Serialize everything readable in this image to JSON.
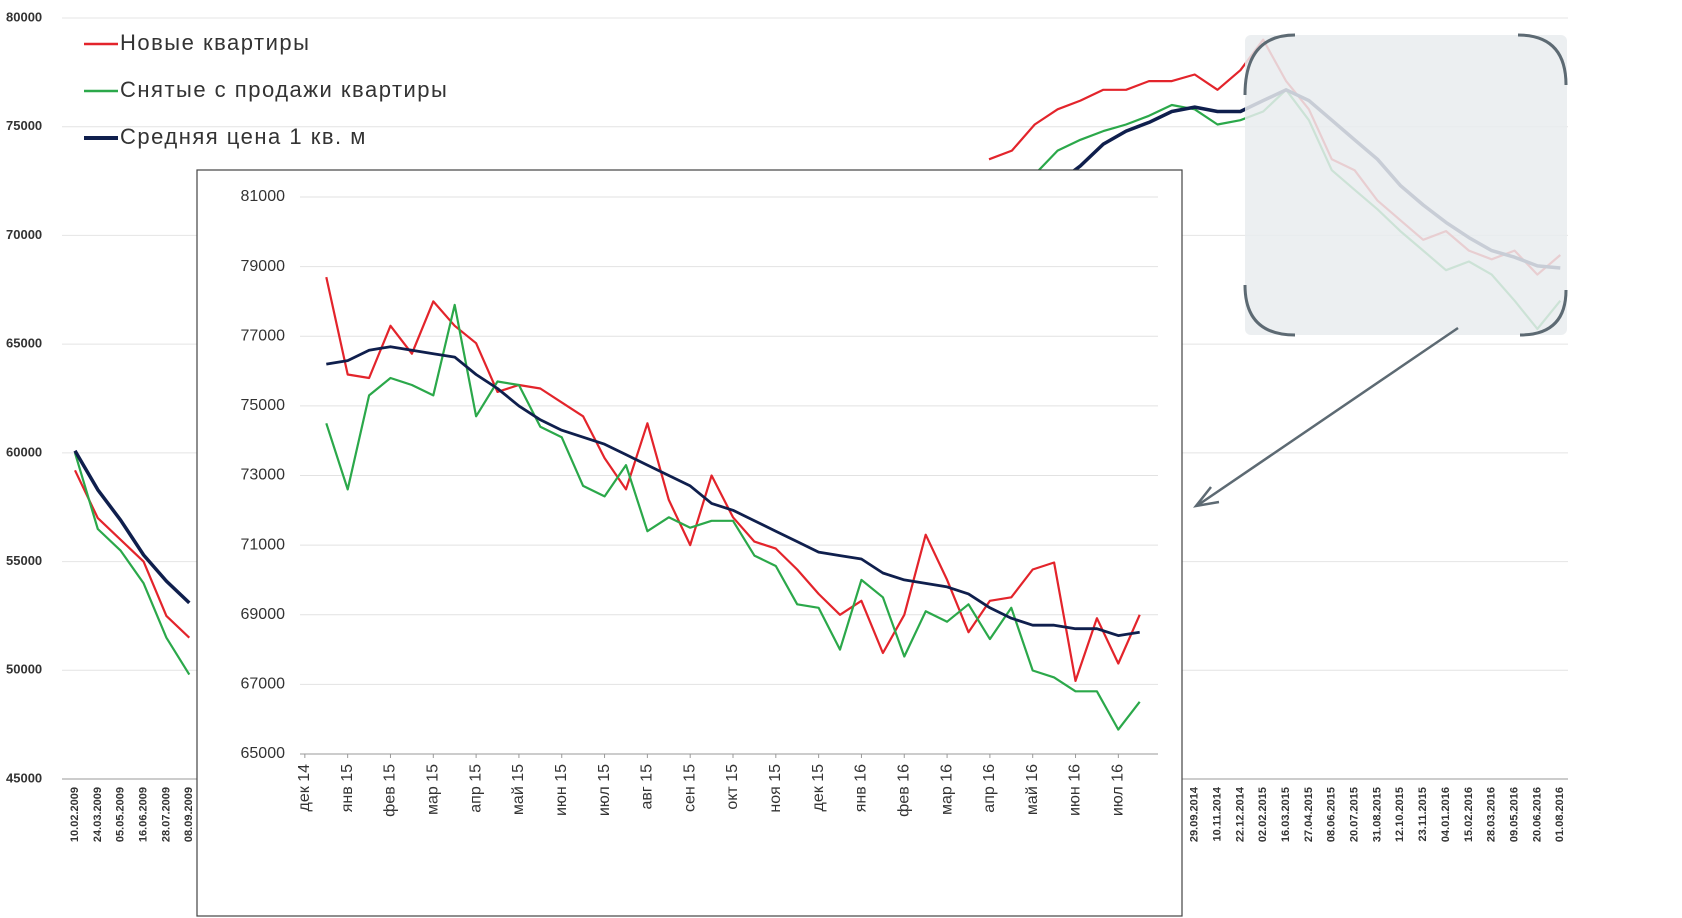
{
  "chart_data": [
    {
      "type": "line",
      "categories": [
        "10.02.2009",
        "24.03.2009",
        "05.05.2009",
        "16.06.2009",
        "28.07.2009",
        "08.09.2009",
        null,
        null,
        null,
        null,
        null,
        null,
        null,
        null,
        null,
        null,
        null,
        null,
        null,
        null,
        null,
        null,
        null,
        null,
        null,
        null,
        null,
        null,
        null,
        null,
        null,
        null,
        null,
        null,
        null,
        null,
        null,
        null,
        null,
        null,
        null,
        null,
        null,
        null,
        null,
        null,
        null,
        null,
        null,
        "29.09.2014",
        "10.11.2014",
        "22.12.2014",
        "02.02.2015",
        "16.03.2015",
        "27.04.2015",
        "08.06.2015",
        "20.07.2015",
        "31.08.2015",
        "12.10.2015",
        "23.11.2015",
        "04.01.2016",
        "15.02.2016",
        "28.03.2016",
        "09.05.2016",
        "20.06.2016",
        "01.08.2016"
      ],
      "series": [
        {
          "name": "Новые квартиры",
          "color": "#e3242b",
          "values": [
            59200,
            57000,
            56000,
            55000,
            52500,
            51500,
            null,
            null,
            null,
            null,
            null,
            null,
            null,
            null,
            null,
            null,
            null,
            null,
            null,
            null,
            null,
            null,
            null,
            null,
            null,
            null,
            null,
            null,
            null,
            null,
            null,
            null,
            null,
            null,
            null,
            null,
            null,
            null,
            null,
            null,
            73500,
            73900,
            75100,
            75800,
            76200,
            76700,
            76700,
            77100,
            77100,
            77400,
            76700,
            77600,
            79000,
            77100,
            75800,
            73500,
            73000,
            71600,
            70700,
            69800,
            70200,
            69300,
            68900,
            69300,
            68200,
            69100
          ]
        },
        {
          "name": "Снятые с продажи квартиры",
          "color": "#2ba84a",
          "values": [
            60000,
            56500,
            55500,
            54000,
            51500,
            49800,
            null,
            null,
            null,
            null,
            null,
            null,
            null,
            null,
            null,
            null,
            null,
            null,
            null,
            null,
            null,
            null,
            null,
            null,
            null,
            null,
            null,
            null,
            null,
            null,
            null,
            null,
            null,
            null,
            null,
            null,
            null,
            null,
            null,
            null,
            null,
            null,
            72800,
            73900,
            74400,
            74800,
            75100,
            75500,
            76000,
            75800,
            75100,
            75300,
            75700,
            76700,
            75300,
            73000,
            72100,
            71200,
            70200,
            69300,
            68400,
            68800,
            68200,
            67000,
            65700,
            67000
          ]
        },
        {
          "name": "Средняя цена 1 кв. м",
          "color": "#0f1f4d",
          "values": [
            60100,
            58300,
            56900,
            55300,
            54100,
            53100,
            null,
            null,
            null,
            null,
            null,
            null,
            null,
            null,
            null,
            null,
            null,
            null,
            null,
            null,
            null,
            null,
            null,
            null,
            null,
            null,
            null,
            null,
            null,
            null,
            null,
            null,
            null,
            null,
            null,
            null,
            null,
            null,
            null,
            null,
            null,
            null,
            null,
            72400,
            73200,
            74200,
            74800,
            75200,
            75700,
            75900,
            75700,
            75700,
            76200,
            76700,
            76200,
            75300,
            74400,
            73500,
            72300,
            71400,
            70600,
            69900,
            69300,
            69000,
            68600,
            68500
          ]
        }
      ],
      "ylim": [
        45000,
        80000
      ],
      "yticks": [
        45000,
        50000,
        55000,
        60000,
        65000,
        70000,
        75000,
        80000
      ],
      "grid": true,
      "legend": "top-left"
    },
    {
      "type": "line",
      "x": [
        0.5,
        1,
        1.5,
        2,
        2.5,
        3,
        3.5,
        4,
        4.5,
        5,
        5.5,
        6,
        6.5,
        7,
        7.5,
        8,
        8.5,
        9,
        9.5,
        10,
        10.5,
        11,
        11.5,
        12,
        12.5,
        13,
        13.5,
        14,
        14.5,
        15,
        15.5,
        16,
        16.5,
        17,
        17.5,
        18,
        18.5,
        19,
        19.5
      ],
      "series": [
        {
          "name": "Новые квартиры",
          "color": "#e3242b",
          "values": [
            78700,
            75900,
            75800,
            77300,
            76500,
            78000,
            77300,
            76800,
            75400,
            75600,
            75500,
            75100,
            74700,
            73500,
            72600,
            74500,
            72300,
            71000,
            73000,
            71800,
            71100,
            70900,
            70300,
            69600,
            69000,
            69400,
            67900,
            69000,
            71300,
            70000,
            68500,
            69400,
            69500,
            70300,
            70500,
            67100,
            68900,
            67600,
            69000
          ]
        },
        {
          "name": "Снятые с продажи квартиры",
          "color": "#2ba84a",
          "values": [
            74500,
            72600,
            75300,
            75800,
            75600,
            75300,
            77900,
            74700,
            75700,
            75600,
            74400,
            74100,
            72700,
            72400,
            73300,
            71400,
            71800,
            71500,
            71700,
            71700,
            70700,
            70400,
            69300,
            69200,
            68000,
            70000,
            69500,
            67800,
            69100,
            68800,
            69300,
            68300,
            69200,
            67400,
            67200,
            66800,
            66800,
            65700,
            66500
          ]
        },
        {
          "name": "Средняя цена 1 кв. м",
          "color": "#0f1f4d",
          "values": [
            76200,
            76300,
            76600,
            76700,
            76600,
            76500,
            76400,
            75900,
            75500,
            75000,
            74600,
            74300,
            74100,
            73900,
            73600,
            73300,
            73000,
            72700,
            72200,
            72000,
            71700,
            71400,
            71100,
            70800,
            70700,
            70600,
            70200,
            70000,
            69900,
            69800,
            69600,
            69200,
            68900,
            68700,
            68700,
            68600,
            68600,
            68400,
            68500
          ]
        }
      ],
      "xlim": [
        -0.3,
        20.3
      ],
      "xticks": [
        {
          "value": 0,
          "label": "дек 14"
        },
        {
          "value": 1,
          "label": "янв 15"
        },
        {
          "value": 2,
          "label": "фев 15"
        },
        {
          "value": 3,
          "label": "мар 15"
        },
        {
          "value": 4,
          "label": "апр 15"
        },
        {
          "value": 5,
          "label": "май 15"
        },
        {
          "value": 6,
          "label": "июн 15"
        },
        {
          "value": 7,
          "label": "июл 15"
        },
        {
          "value": 8,
          "label": "авг 15"
        },
        {
          "value": 9,
          "label": "сен 15"
        },
        {
          "value": 10,
          "label": "окт 15"
        },
        {
          "value": 11,
          "label": "ноя 15"
        },
        {
          "value": 12,
          "label": "дек 15"
        },
        {
          "value": 13,
          "label": "янв 16"
        },
        {
          "value": 14,
          "label": "фев 16"
        },
        {
          "value": 15,
          "label": "мар 16"
        },
        {
          "value": 16,
          "label": "апр 16"
        },
        {
          "value": 17,
          "label": "май 16"
        },
        {
          "value": 18,
          "label": "июн 16"
        },
        {
          "value": 19,
          "label": "июл 16"
        }
      ],
      "ylim": [
        65000,
        81000
      ],
      "yticks": [
        65000,
        67000,
        69000,
        71000,
        73000,
        75000,
        77000,
        79000,
        81000
      ],
      "grid": true
    }
  ]
}
